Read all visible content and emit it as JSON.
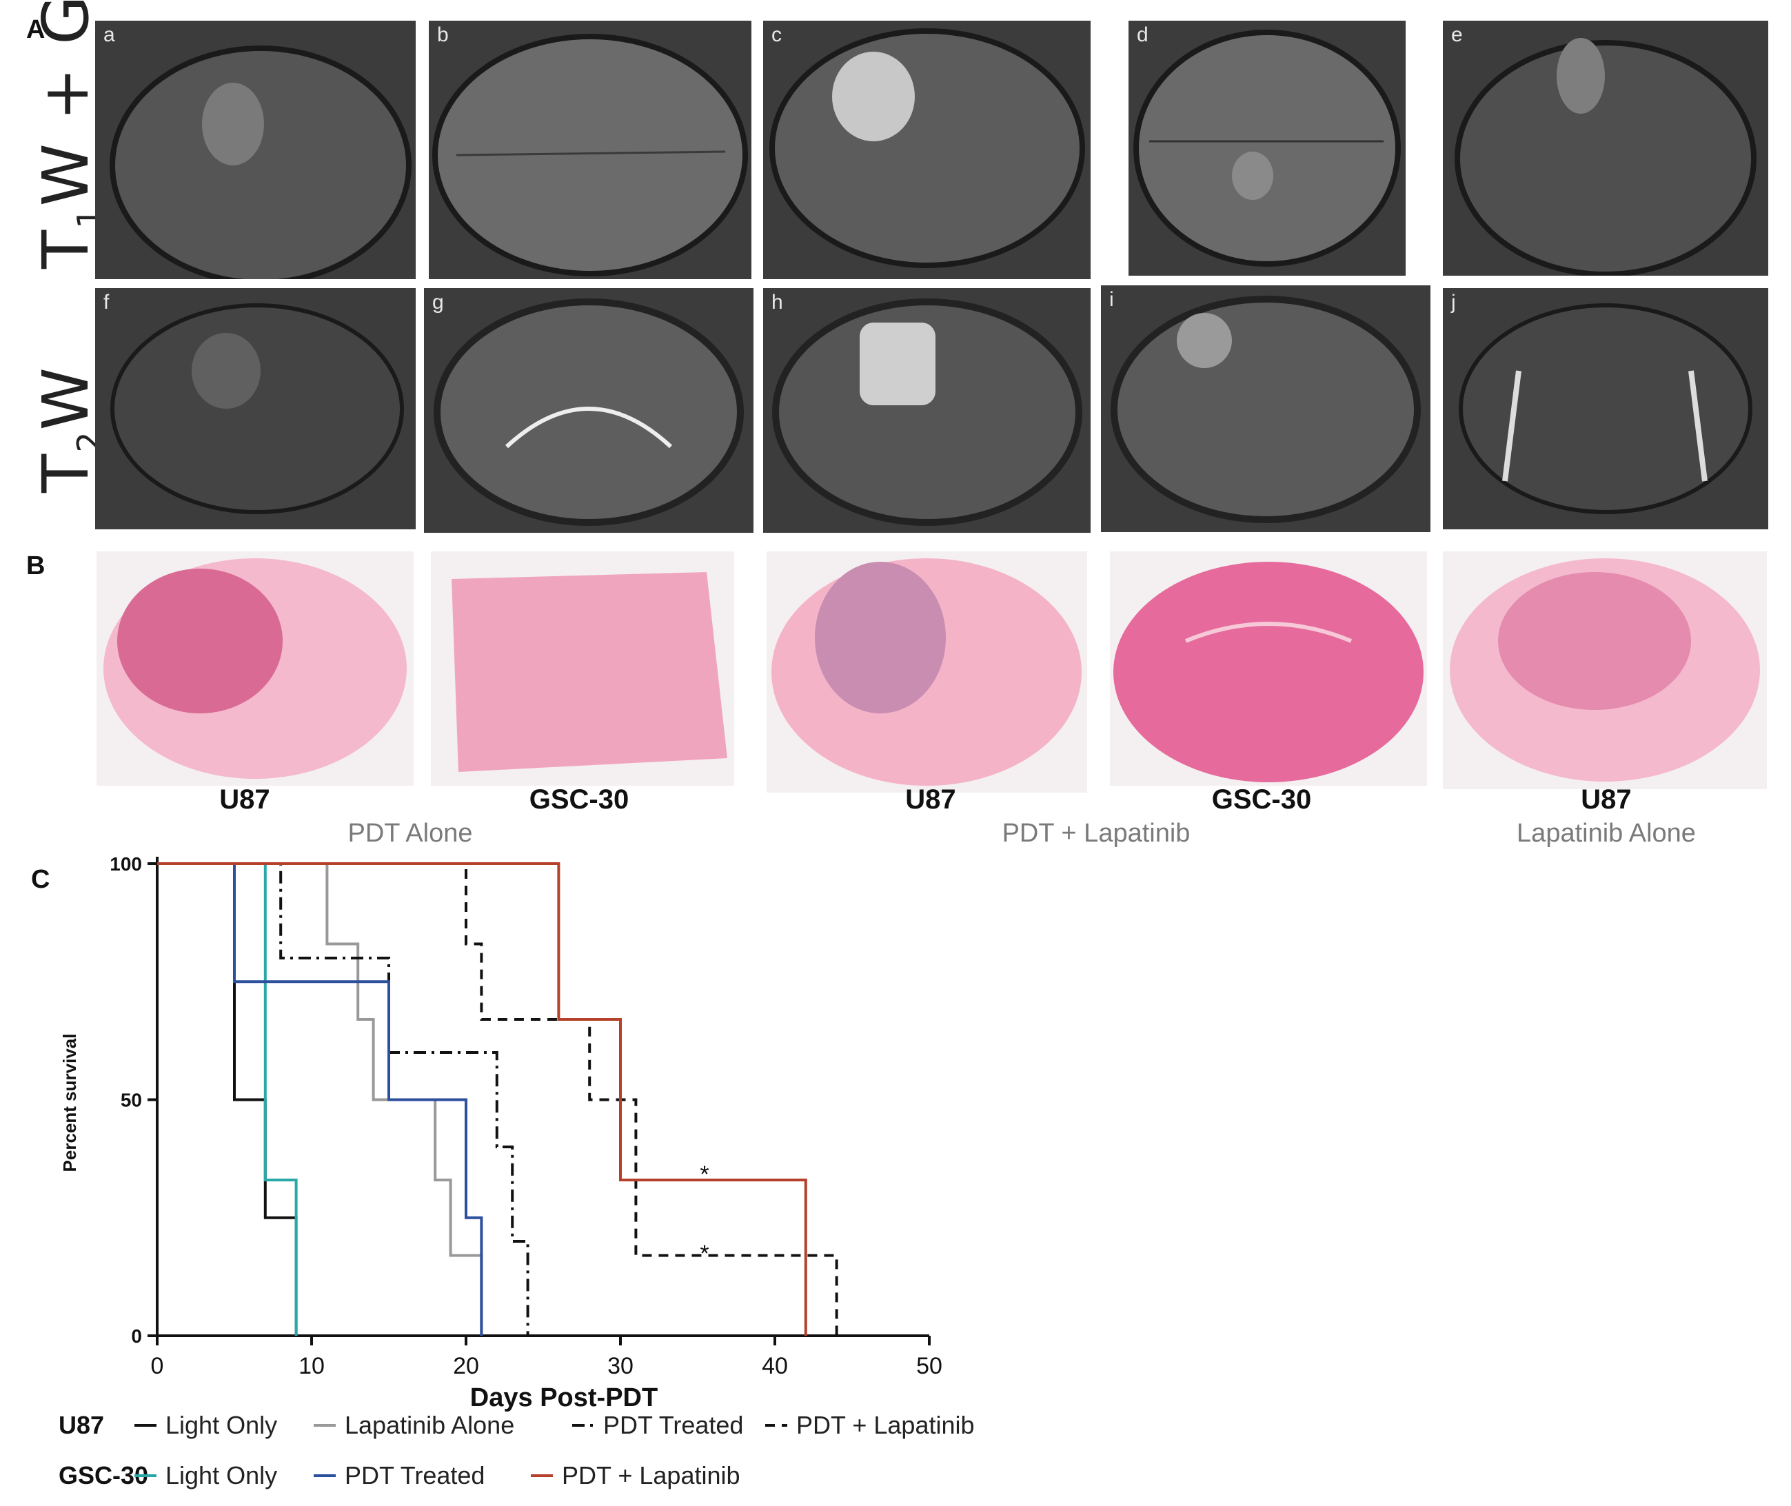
{
  "panels": {
    "A": "A",
    "B": "B",
    "C": "C"
  },
  "mri": {
    "row1_label": {
      "main": "T",
      "sub": "1",
      "rest": "W + Gd",
      "sup": "+"
    },
    "row2_label": {
      "main": "T",
      "sub": "2",
      "rest": "W"
    },
    "letters": [
      "a",
      "b",
      "c",
      "d",
      "e",
      "f",
      "g",
      "h",
      "i",
      "j"
    ]
  },
  "histology": {
    "labels": [
      "U87",
      "GSC-30",
      "U87",
      "GSC-30",
      "U87"
    ],
    "groups": [
      "PDT Alone",
      "PDT + Lapatinib",
      "Lapatinib Alone"
    ]
  },
  "chart_data": {
    "type": "line",
    "subtype": "kaplan-meier",
    "xlabel": "Days Post-PDT",
    "ylabel": "Percent survival",
    "xlim": [
      0,
      50
    ],
    "ylim": [
      0,
      100
    ],
    "xticks": [
      0,
      10,
      20,
      30,
      40,
      50
    ],
    "yticks": [
      0,
      50,
      100
    ],
    "series": [
      {
        "name": "U87 Light Only",
        "color": "#111111",
        "dash": "solid",
        "x": [
          0,
          5,
          7,
          8,
          9
        ],
        "y": [
          100,
          50,
          25,
          25,
          0
        ]
      },
      {
        "name": "U87 Lapatinib Alone",
        "color": "#999999",
        "dash": "solid",
        "x": [
          0,
          11,
          13,
          14,
          18,
          19,
          21
        ],
        "y": [
          100,
          83,
          67,
          50,
          33,
          17,
          0
        ]
      },
      {
        "name": "U87 PDT Treated",
        "color": "#111111",
        "dash": "dashdot",
        "x": [
          0,
          8,
          15,
          22,
          23,
          24
        ],
        "y": [
          100,
          80,
          60,
          40,
          20,
          0
        ]
      },
      {
        "name": "U87 PDT + Lapatinib",
        "color": "#111111",
        "dash": "dashed",
        "x": [
          0,
          20,
          21,
          26,
          28,
          31,
          44
        ],
        "y": [
          100,
          83,
          67,
          67,
          50,
          17,
          0
        ]
      },
      {
        "name": "GSC-30 Light Only",
        "color": "#2aa7a7",
        "dash": "solid",
        "x": [
          0,
          7,
          9
        ],
        "y": [
          100,
          33,
          0
        ]
      },
      {
        "name": "GSC-30 PDT Treated",
        "color": "#2c4f9e",
        "dash": "solid",
        "x": [
          0,
          5,
          15,
          20,
          21
        ],
        "y": [
          100,
          75,
          50,
          25,
          0
        ]
      },
      {
        "name": "GSC-30 PDT + Lapatinib",
        "color": "#b5412b",
        "dash": "solid",
        "x": [
          0,
          26,
          30,
          42
        ],
        "y": [
          100,
          67,
          33,
          0
        ]
      }
    ],
    "annotations": [
      "*",
      "*"
    ],
    "legend": {
      "U87": {
        "title": "U87",
        "items": [
          "Light Only",
          "Lapatinib Alone",
          "PDT Treated",
          "PDT + Lapatinib"
        ]
      },
      "GSC30": {
        "title": "GSC-30",
        "items": [
          "Light Only",
          "PDT Treated",
          "PDT + Lapatinib"
        ]
      }
    }
  }
}
